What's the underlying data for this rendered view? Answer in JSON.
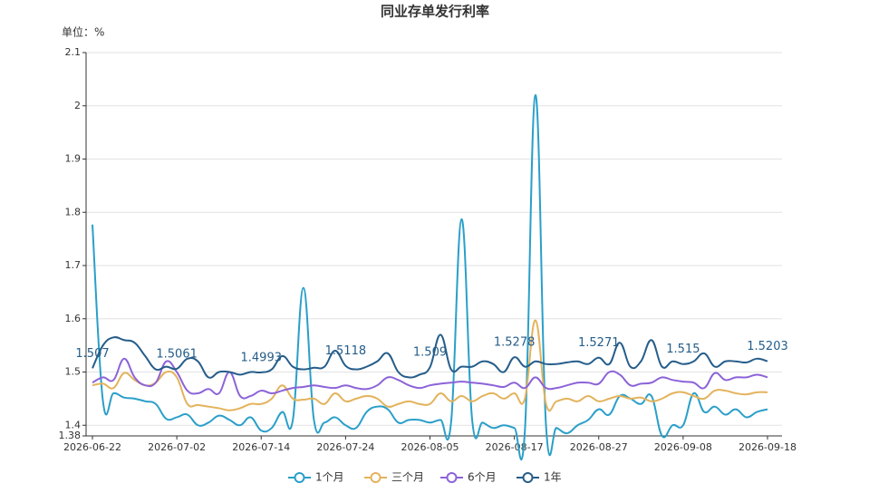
{
  "chart_data": {
    "type": "line",
    "title": "同业存单发行利率",
    "y_label": "单位：%",
    "categories": [
      "2026-06-22",
      null,
      null,
      null,
      null,
      null,
      null,
      null,
      "2026-07-02",
      null,
      null,
      null,
      null,
      null,
      null,
      null,
      "2026-07-14",
      null,
      null,
      null,
      null,
      null,
      null,
      null,
      "2026-07-24",
      null,
      null,
      null,
      null,
      null,
      null,
      null,
      "2026-08-05",
      null,
      null,
      null,
      null,
      null,
      null,
      null,
      "2026-08-17",
      null,
      null,
      null,
      null,
      null,
      null,
      null,
      "2026-08-27",
      null,
      null,
      null,
      null,
      null,
      null,
      null,
      "2026-09-08",
      null,
      null,
      null,
      null,
      null,
      null,
      null,
      "2026-09-18"
    ],
    "ylim": [
      1.38,
      2.1
    ],
    "yticks": [
      1.38,
      1.4,
      1.5,
      1.6,
      1.7,
      1.8,
      1.9,
      2,
      2.1
    ],
    "grid": true,
    "smooth": true,
    "legend": "bottom",
    "series": [
      {
        "name": "1个月",
        "color": "#2a9fc9",
        "values": [
          1.777,
          1.445,
          1.46,
          1.452,
          1.45,
          1.445,
          1.44,
          1.412,
          1.415,
          1.42,
          1.4,
          1.405,
          1.418,
          1.41,
          1.4,
          1.415,
          1.39,
          1.395,
          1.425,
          1.41,
          1.658,
          1.41,
          1.405,
          1.415,
          1.4,
          1.395,
          1.425,
          1.435,
          1.43,
          1.405,
          1.41,
          1.41,
          1.405,
          1.41,
          1.405,
          1.787,
          1.41,
          1.405,
          1.395,
          1.4,
          1.395,
          1.39,
          2.02,
          1.4,
          1.395,
          1.385,
          1.4,
          1.41,
          1.43,
          1.42,
          1.455,
          1.45,
          1.44,
          1.455,
          1.38,
          1.4,
          1.4,
          1.46,
          1.425,
          1.435,
          1.42,
          1.43,
          1.415,
          1.425,
          1.43
        ]
      },
      {
        "name": "三个月",
        "color": "#e3b35c",
        "values": [
          1.475,
          1.478,
          1.47,
          1.498,
          1.485,
          1.475,
          1.48,
          1.5,
          1.49,
          1.44,
          1.438,
          1.435,
          1.432,
          1.428,
          1.432,
          1.44,
          1.44,
          1.45,
          1.475,
          1.45,
          1.448,
          1.45,
          1.44,
          1.46,
          1.445,
          1.45,
          1.455,
          1.45,
          1.435,
          1.44,
          1.445,
          1.44,
          1.44,
          1.46,
          1.445,
          1.455,
          1.445,
          1.455,
          1.46,
          1.45,
          1.46,
          1.45,
          1.597,
          1.44,
          1.445,
          1.45,
          1.445,
          1.455,
          1.445,
          1.45,
          1.455,
          1.45,
          1.452,
          1.445,
          1.45,
          1.46,
          1.462,
          1.455,
          1.45,
          1.465,
          1.465,
          1.46,
          1.458,
          1.462,
          1.462
        ]
      },
      {
        "name": "6个月",
        "color": "#8c63d8",
        "values": [
          1.48,
          1.49,
          1.485,
          1.525,
          1.49,
          1.475,
          1.48,
          1.52,
          1.5,
          1.465,
          1.46,
          1.468,
          1.46,
          1.5,
          1.455,
          1.455,
          1.465,
          1.46,
          1.465,
          1.47,
          1.472,
          1.475,
          1.472,
          1.47,
          1.475,
          1.47,
          1.468,
          1.475,
          1.49,
          1.485,
          1.475,
          1.47,
          1.475,
          1.478,
          1.48,
          1.482,
          1.48,
          1.478,
          1.475,
          1.472,
          1.48,
          1.47,
          1.49,
          1.47,
          1.47,
          1.475,
          1.48,
          1.48,
          1.478,
          1.5,
          1.495,
          1.475,
          1.478,
          1.48,
          1.49,
          1.485,
          1.482,
          1.48,
          1.47,
          1.498,
          1.485,
          1.49,
          1.49,
          1.495,
          1.49
        ]
      },
      {
        "name": "1年",
        "color": "#255d8a",
        "values": [
          1.507,
          1.55,
          1.565,
          1.56,
          1.555,
          1.53,
          1.505,
          1.51,
          1.5061,
          1.525,
          1.52,
          1.49,
          1.5,
          1.5,
          1.495,
          1.5,
          1.4993,
          1.505,
          1.53,
          1.51,
          1.505,
          1.508,
          1.51,
          1.54,
          1.5118,
          1.505,
          1.51,
          1.52,
          1.535,
          1.5,
          1.49,
          1.495,
          1.509,
          1.57,
          1.505,
          1.51,
          1.51,
          1.52,
          1.515,
          1.5,
          1.5278,
          1.51,
          1.52,
          1.515,
          1.515,
          1.518,
          1.52,
          1.515,
          1.5271,
          1.515,
          1.555,
          1.51,
          1.52,
          1.56,
          1.51,
          1.52,
          1.515,
          1.52,
          1.535,
          1.51,
          1.52,
          1.52,
          1.518,
          1.525,
          1.5203
        ]
      }
    ]
  }
}
